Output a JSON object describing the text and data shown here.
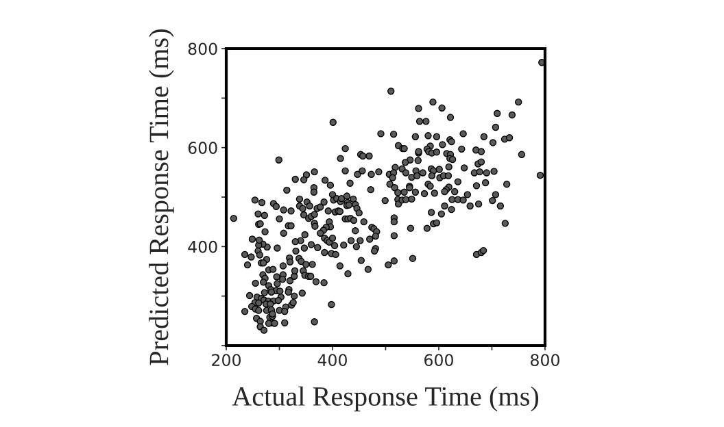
{
  "chart_data": {
    "type": "scatter",
    "xlabel": "Actual Response Time (ms)",
    "ylabel": "Predicted Response Time (ms)",
    "xlim": [
      200,
      800
    ],
    "ylim": [
      200,
      800
    ],
    "xticks": [
      200,
      {
        "value": 300,
        "label": null
      },
      400,
      {
        "value": 500,
        "label": null
      },
      600,
      {
        "value": 700,
        "label": null
      },
      800
    ],
    "yticks": [
      {
        "value": 200,
        "label": null
      },
      {
        "value": 300,
        "label": null
      },
      400,
      {
        "value": 500,
        "label": null
      },
      600,
      {
        "value": 700,
        "label": null
      },
      800
    ],
    "grid": false,
    "marker": "circle",
    "series": [
      {
        "color": "#5a5a5a",
        "x": [
          401,
          491,
          424,
          299,
          415,
          453,
          457,
          469,
          366,
          351,
          346,
          330,
          386,
          396,
          424,
          433,
          447,
          456,
          473,
          487,
          472,
          314,
          365,
          365,
          794,
          510,
          589,
          562,
          606,
          750,
          622,
          710,
          738,
          564,
          576,
          707,
          515,
          556,
          580,
          596,
          621,
          624,
          646,
          685,
          724,
          733,
          702,
          524,
          532,
          535,
          584,
          578,
          607,
          581,
          587,
          596,
          562,
          562,
          643,
          670,
          680,
          615,
          622,
          621,
          626,
          756,
          546,
          537,
          561,
          674,
          680,
          619,
          648,
          518,
          531,
          538,
          557,
          570,
          586,
          590,
          601,
          549,
          559,
          587,
          602,
          609,
          618,
          667,
          677,
          690,
          704,
          507,
          515,
          513,
          508,
          517,
          545,
          545,
          580,
          584,
          636,
          671,
          688,
          728,
          791,
          619,
          614,
          611,
          630,
          523,
          535,
          556,
          592,
          573,
          654,
          707,
          214,
          254,
          267,
          289,
          294,
          260,
          272,
          261,
          264,
          273,
          300,
          308,
          322,
          338,
          352,
          338,
          344,
          357,
          346,
          355,
          360,
          366,
          371,
          377,
          384,
          366,
          367,
          317,
          322,
          308,
          392,
          400,
          402,
          408,
          415,
          417,
          427,
          428,
          439,
          443,
          446,
          450,
          405,
          411,
          414,
          427,
          431,
          424,
          429,
          434,
          440,
          459,
          394,
          396,
          388,
          383,
          377,
          348,
          385,
          390,
          394,
          400,
          404,
          421,
          435,
          445,
          452,
          443,
          474,
          478,
          483,
          470,
          481,
          481,
          479,
          499,
          454,
          467,
          429,
          414,
          398,
          406,
          385,
          372,
          360,
          347,
          340,
          330,
          331,
          319,
          320,
          337,
          341,
          350,
          362,
          307,
          296,
          277,
          269,
          261,
          262,
          249,
          260,
          263,
          235,
          247,
          240,
          276,
          266,
          270,
          280,
          288,
          307,
          295,
          269,
          273,
          255,
          270,
          280,
          284,
          294,
          301,
          296,
          306,
          320,
          328,
          329,
          345,
          348,
          355,
          359,
          369,
          384,
          318,
          317,
          328,
          343,
          303,
          244,
          258,
          272,
          285,
          266,
          271,
          279,
          289,
          298,
          254,
          261,
          275,
          283,
          248,
          255,
          261,
          276,
          285,
          300,
          312,
          310,
          323,
          326,
          235,
          257,
          264,
          282,
          287,
          285,
          291,
          280,
          287,
          310,
          264,
          271,
          366,
          398,
          523,
          524,
          531,
          538,
          549,
          625,
          636,
          646,
          659,
          675,
          701,
          716,
          725,
          611,
          624,
          605,
          586,
          516,
          516,
          516,
          547,
          578,
          590,
          596,
          671,
          680,
          684,
          516,
          505,
          551
        ],
        "values": [
          651,
          628,
          598,
          575,
          578,
          586,
          583,
          583,
          551,
          545,
          535,
          536,
          534,
          524,
          553,
          528,
          546,
          553,
          546,
          551,
          515,
          514,
          519,
          510,
          772,
          714,
          692,
          679,
          680,
          692,
          661,
          669,
          666,
          653,
          653,
          641,
          627,
          622,
          624,
          622,
          616,
          612,
          628,
          622,
          617,
          620,
          610,
          604,
          598,
          598,
          603,
          597,
          606,
          592,
          589,
          591,
          589,
          592,
          597,
          595,
          592,
          588,
          586,
          578,
          576,
          586,
          575,
          570,
          574,
          567,
          571,
          561,
          559,
          560,
          557,
          549,
          553,
          549,
          557,
          553,
          556,
          540,
          543,
          543,
          539,
          543,
          543,
          549,
          551,
          549,
          552,
          546,
          549,
          539,
          526,
          519,
          522,
          519,
          526,
          522,
          531,
          523,
          529,
          526,
          544,
          520,
          515,
          511,
          511,
          509,
          510,
          510,
          508,
          507,
          505,
          505,
          457,
          494,
          489,
          487,
          481,
          466,
          463,
          445,
          446,
          430,
          456,
          474,
          472,
          496,
          490,
          482,
          477,
          482,
          464,
          457,
          461,
          465,
          477,
          480,
          490,
          447,
          441,
          442,
          442,
          427,
          472,
          505,
          494,
          497,
          491,
          497,
          502,
          489,
          496,
          485,
          477,
          468,
          470,
          472,
          471,
          483,
          484,
          456,
          456,
          457,
          453,
          450,
          450,
          440,
          439,
          433,
          427,
          424,
          417,
          412,
          409,
          417,
          402,
          403,
          412,
          400,
          412,
          432,
          439,
          436,
          430,
          415,
          421,
          396,
          391,
          493,
          372,
          354,
          345,
          361,
          386,
          384,
          388,
          398,
          404,
          397,
          412,
          410,
          391,
          377,
          369,
          376,
          370,
          364,
          364,
          361,
          397,
          399,
          405,
          403,
          413,
          415,
          391,
          383,
          384,
          379,
          363,
          374,
          367,
          367,
          353,
          354,
          343,
          339,
          343,
          336,
          326,
          328,
          321,
          313,
          311,
          310,
          325,
          334,
          331,
          340,
          351,
          351,
          342,
          340,
          340,
          329,
          327,
          313,
          308,
          300,
          306,
          298,
          301,
          298,
          307,
          308,
          295,
          292,
          290,
          290,
          291,
          287,
          286,
          284,
          284,
          279,
          274,
          271,
          271,
          272,
          271,
          278,
          269,
          282,
          287,
          269,
          255,
          249,
          257,
          259,
          246,
          245,
          245,
          264,
          246,
          238,
          231,
          248,
          283,
          495,
          486,
          494,
          495,
          496,
          495,
          495,
          494,
          482,
          486,
          493,
          482,
          447,
          482,
          475,
          466,
          469,
          458,
          450,
          422,
          437,
          437,
          446,
          448,
          384,
          388,
          392,
          371,
          363,
          376
        ]
      }
    ]
  }
}
